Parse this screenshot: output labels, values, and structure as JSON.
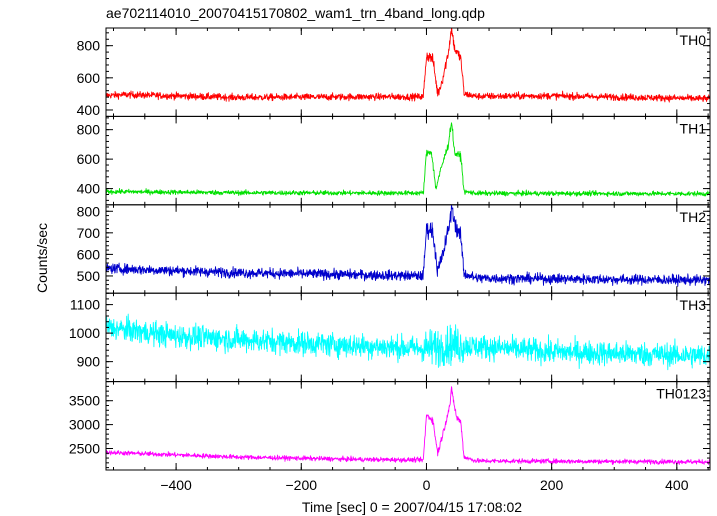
{
  "title": "ae702114010_20070415170802_wam1_trn_4band_long.qdp",
  "ylabel": "Counts/sec",
  "xlabel": "Time [sec] 0 = 2007/04/15 17:08:02",
  "chart_data": {
    "type": "line",
    "xlim": [
      -512,
      453
    ],
    "x_ticks": [
      -400,
      -200,
      0,
      200,
      400
    ],
    "x_tick_labels": [
      "−400",
      "−200",
      "0",
      "200",
      "400"
    ],
    "panels": [
      {
        "name": "TH0",
        "color": "#ff0000",
        "ylim": [
          360,
          910
        ],
        "ticks": [
          400,
          600,
          800
        ],
        "tick_labels": [
          "400",
          "600",
          "800"
        ],
        "profile": [
          [
            -512,
            490
          ],
          [
            -480,
            495
          ],
          [
            -300,
            478
          ],
          [
            -100,
            482
          ],
          [
            -5,
            482
          ],
          [
            0,
            740
          ],
          [
            10,
            720
          ],
          [
            18,
            500
          ],
          [
            25,
            580
          ],
          [
            35,
            760
          ],
          [
            40,
            910
          ],
          [
            45,
            780
          ],
          [
            55,
            720
          ],
          [
            60,
            500
          ],
          [
            80,
            485
          ],
          [
            200,
            488
          ],
          [
            453,
            470
          ]
        ],
        "noise": 20
      },
      {
        "name": "TH1",
        "color": "#00e000",
        "ylim": [
          290,
          890
        ],
        "ticks": [
          400,
          600,
          800
        ],
        "tick_labels": [
          "400",
          "600",
          "800"
        ],
        "profile": [
          [
            -512,
            380
          ],
          [
            -300,
            372
          ],
          [
            -100,
            370
          ],
          [
            -5,
            370
          ],
          [
            0,
            640
          ],
          [
            8,
            650
          ],
          [
            15,
            400
          ],
          [
            25,
            560
          ],
          [
            35,
            700
          ],
          [
            40,
            860
          ],
          [
            45,
            640
          ],
          [
            55,
            620
          ],
          [
            60,
            380
          ],
          [
            80,
            368
          ],
          [
            453,
            365
          ]
        ],
        "noise": 15
      },
      {
        "name": "TH2",
        "color": "#0000cc",
        "ylim": [
          420,
          830
        ],
        "ticks": [
          500,
          600,
          700,
          800
        ],
        "tick_labels": [
          "500",
          "600",
          "700",
          "800"
        ],
        "profile": [
          [
            -512,
            535
          ],
          [
            -300,
            515
          ],
          [
            -100,
            505
          ],
          [
            -5,
            500
          ],
          [
            0,
            720
          ],
          [
            10,
            710
          ],
          [
            18,
            520
          ],
          [
            28,
            620
          ],
          [
            38,
            760
          ],
          [
            40,
            820
          ],
          [
            48,
            720
          ],
          [
            55,
            680
          ],
          [
            60,
            510
          ],
          [
            80,
            490
          ],
          [
            453,
            480
          ]
        ],
        "noise": 22
      },
      {
        "name": "TH3",
        "color": "#00ffff",
        "ylim": [
          830,
          1140
        ],
        "ticks": [
          900,
          1000,
          1100
        ],
        "tick_labels": [
          "900",
          "1000",
          "1100"
        ],
        "profile": [
          [
            -512,
            1020
          ],
          [
            -400,
            990
          ],
          [
            -200,
            965
          ],
          [
            0,
            945
          ],
          [
            40,
            960
          ],
          [
            200,
            935
          ],
          [
            453,
            920
          ]
        ],
        "noise": 40
      },
      {
        "name": "TH0123",
        "color": "#ff00ff",
        "ylim": [
          2050,
          3900
        ],
        "ticks": [
          2500,
          3000,
          3500
        ],
        "tick_labels": [
          "2500",
          "3000",
          "3500"
        ],
        "profile": [
          [
            -512,
            2420
          ],
          [
            -300,
            2320
          ],
          [
            -100,
            2270
          ],
          [
            -5,
            2260
          ],
          [
            0,
            3200
          ],
          [
            10,
            3100
          ],
          [
            18,
            2400
          ],
          [
            28,
            2900
          ],
          [
            38,
            3450
          ],
          [
            40,
            3750
          ],
          [
            48,
            3150
          ],
          [
            55,
            3050
          ],
          [
            60,
            2320
          ],
          [
            80,
            2240
          ],
          [
            453,
            2220
          ]
        ],
        "noise": 45
      }
    ]
  }
}
